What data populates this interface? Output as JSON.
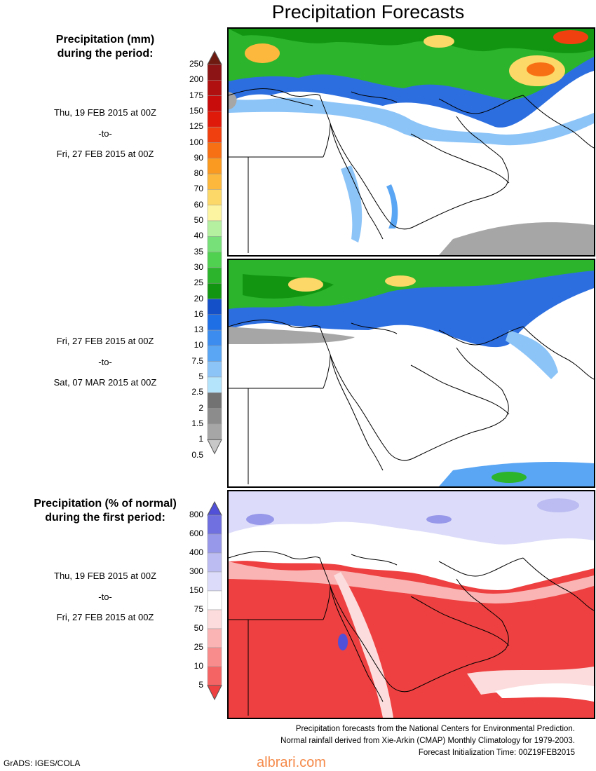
{
  "title": "Precipitation Forecasts",
  "section1": {
    "heading_line1": "Precipitation (mm)",
    "heading_line2": "during the period:",
    "period1": {
      "from": "Thu, 19 FEB 2015 at 00Z",
      "to": "-to-",
      "until": "Fri, 27 FEB 2015 at 00Z"
    },
    "period2": {
      "from": "Fri, 27 FEB 2015 at 00Z",
      "to": "-to-",
      "until": "Sat, 07 MAR 2015 at 00Z"
    },
    "scale": [
      "250",
      "200",
      "175",
      "150",
      "125",
      "100",
      "90",
      "80",
      "70",
      "60",
      "50",
      "40",
      "35",
      "30",
      "25",
      "20",
      "16",
      "13",
      "10",
      "7.5",
      "5",
      "2.5",
      "2",
      "1.5",
      "1",
      "0.5"
    ],
    "colors": [
      "#6e1a10",
      "#8c1414",
      "#b01010",
      "#c80c0c",
      "#e01a0a",
      "#f04010",
      "#f87014",
      "#fa9a20",
      "#fcb83c",
      "#fcd868",
      "#fcf4a0",
      "#b4f0a0",
      "#78e078",
      "#50d250",
      "#2cb42c",
      "#129612",
      "#1450c8",
      "#1e6ee6",
      "#3c8cf0",
      "#5aa6f4",
      "#8cc4f8",
      "#b4e4fc",
      "#727272",
      "#8c8c8c",
      "#a6a6a6",
      "#c8c8c8"
    ]
  },
  "section2": {
    "heading_line1": "Precipitation (% of normal)",
    "heading_line2": "during the first period:",
    "period": {
      "from": "Thu, 19 FEB 2015 at 00Z",
      "to": "-to-",
      "until": "Fri, 27 FEB 2015 at 00Z"
    },
    "scale": [
      "800",
      "600",
      "400",
      "300",
      "150",
      "75",
      "50",
      "25",
      "10",
      "5"
    ],
    "colors": [
      "#5050d8",
      "#7070e0",
      "#9898ea",
      "#bcbcf2",
      "#dcdcfa",
      "#ffffff",
      "#fcdcdc",
      "#fab4b4",
      "#f88c8c",
      "#f46464",
      "#ee4040"
    ]
  },
  "footer": {
    "line1": "Precipitation forecasts from the National Centers for Environmental Prediction.",
    "line2": "Normal rainfall derived from Xie-Arkin (CMAP) Monthly Climatology for 1979-2003.",
    "line3": "Forecast Initialization Time: 00Z19FEB2015"
  },
  "credit": "GrADS: IGES/COLA",
  "watermark": "albrari.com"
}
